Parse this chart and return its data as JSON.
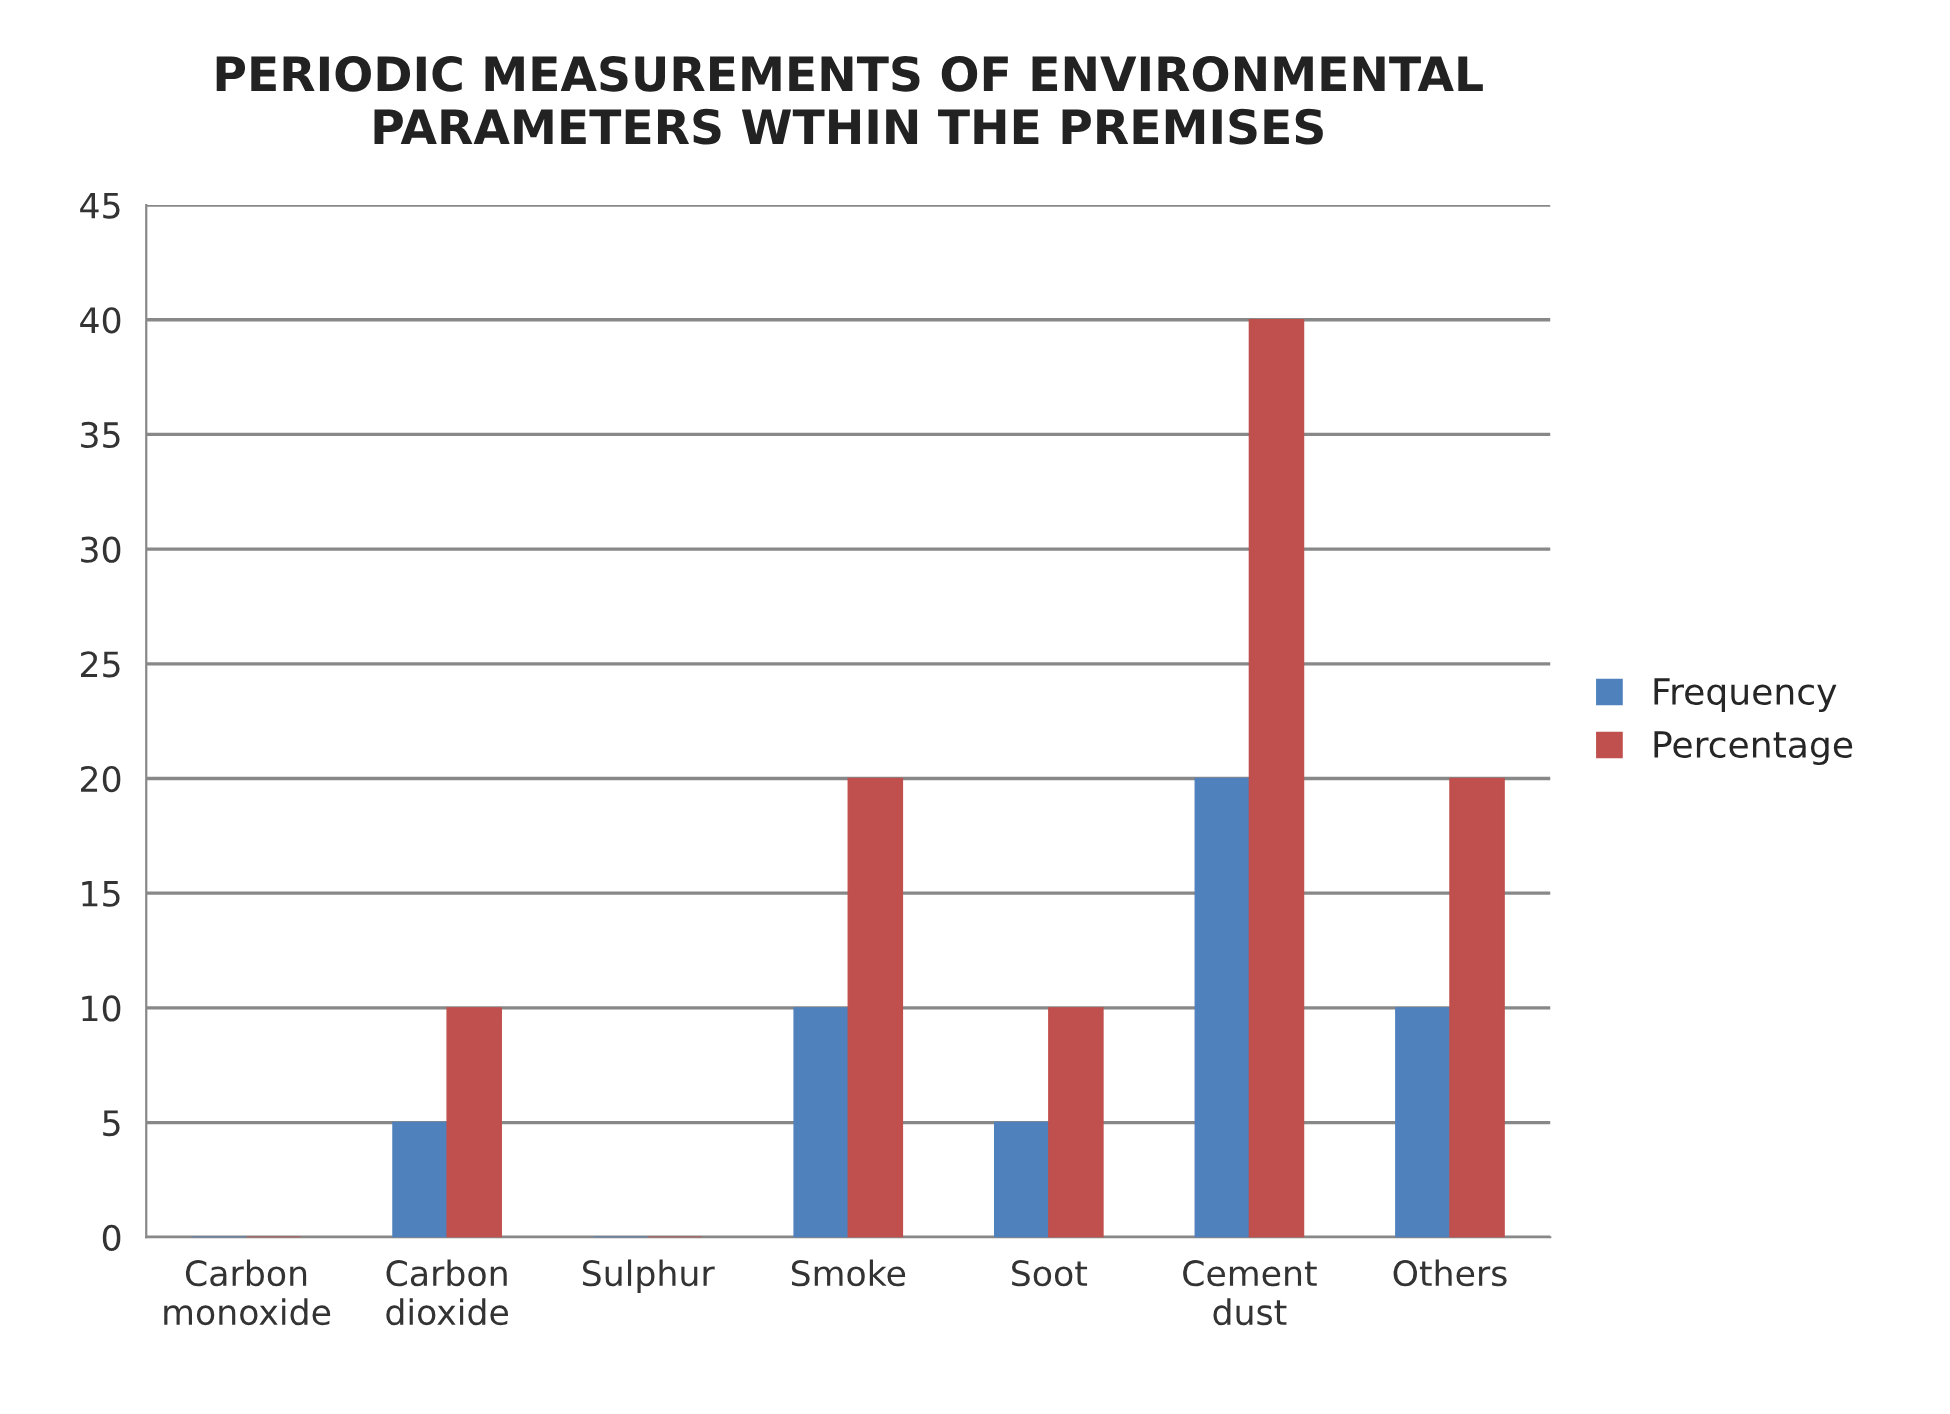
{
  "chart_data": {
    "type": "bar",
    "title": "PERIODIC MEASUREMENTS OF ENVIRONMENTAL\nPARAMETERS WTHIN THE PREMISES",
    "categories": [
      "Carbon\nmonoxide",
      "Carbon\ndioxide",
      "Sulphur",
      "Smoke",
      "Soot",
      "Cement\ndust",
      "Others"
    ],
    "series": [
      {
        "name": "Frequency",
        "color": "#4f81bd",
        "values": [
          0,
          5,
          0,
          10,
          5,
          20,
          10
        ]
      },
      {
        "name": "Percentage",
        "color": "#c0504d",
        "values": [
          0,
          10,
          0,
          20,
          10,
          40,
          20
        ]
      }
    ],
    "ylim": [
      0,
      45
    ],
    "yticks": [
      0,
      5,
      10,
      15,
      20,
      25,
      30,
      35,
      40,
      45
    ],
    "grid": "y",
    "legend": "right"
  }
}
